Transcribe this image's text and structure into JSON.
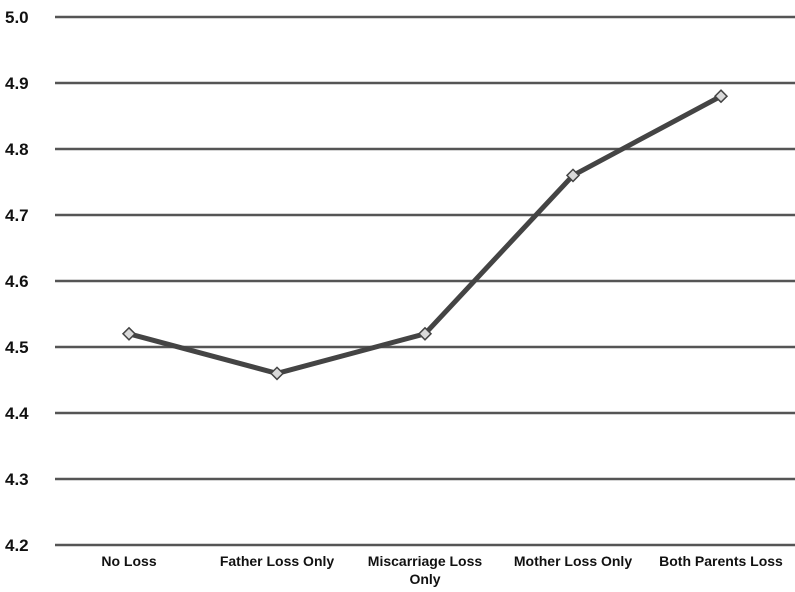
{
  "chart_data": {
    "type": "line",
    "title": "",
    "xlabel": "",
    "ylabel": "",
    "categories": [
      [
        "No Loss"
      ],
      [
        "Father Loss Only"
      ],
      [
        "Miscarriage Loss",
        "Only"
      ],
      [
        "Mother Loss Only"
      ],
      [
        "Both Parents Loss"
      ]
    ],
    "series": [
      {
        "values": [
          4.52,
          4.46,
          4.52,
          4.76,
          4.88
        ],
        "color": "#444444"
      }
    ],
    "ylim": [
      4.2,
      5.0
    ],
    "yticks": [
      "4.2",
      "4.3",
      "4.4",
      "4.5",
      "4.6",
      "4.7",
      "4.8",
      "4.9",
      "5.0"
    ],
    "grid": true,
    "legend": "none",
    "marker": "diamond"
  }
}
